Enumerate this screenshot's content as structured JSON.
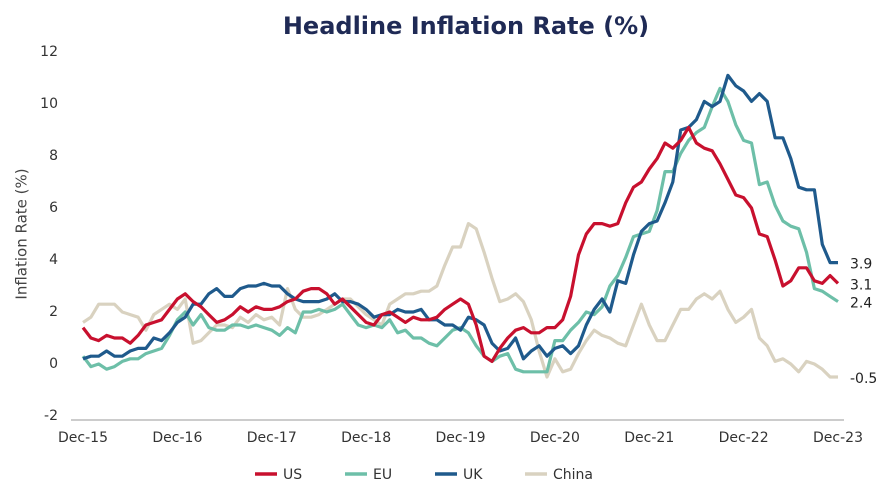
{
  "chart_data": {
    "type": "line",
    "title": "Headline Inflation Rate (%)",
    "y_label": "Inflation Rate (%)",
    "categories": [
      "Dec-15",
      null,
      null,
      null,
      null,
      null,
      null,
      null,
      null,
      null,
      null,
      null,
      "Dec-16",
      null,
      null,
      null,
      null,
      null,
      null,
      null,
      null,
      null,
      null,
      null,
      "Dec-17",
      null,
      null,
      null,
      null,
      null,
      null,
      null,
      null,
      null,
      null,
      null,
      "Dec-18",
      null,
      null,
      null,
      null,
      null,
      null,
      null,
      null,
      null,
      null,
      null,
      "Dec-19",
      null,
      null,
      null,
      null,
      null,
      null,
      null,
      null,
      null,
      null,
      null,
      "Dec-20",
      null,
      null,
      null,
      null,
      null,
      null,
      null,
      null,
      null,
      null,
      null,
      "Dec-21",
      null,
      null,
      null,
      null,
      null,
      null,
      null,
      null,
      null,
      null,
      null,
      "Dec-22",
      null,
      null,
      null,
      null,
      null,
      null,
      null,
      null,
      null,
      null,
      null,
      "Dec-23"
    ],
    "ylim": [
      -2,
      12
    ],
    "yticks": [
      -2,
      0,
      2,
      4,
      6,
      8,
      10,
      12
    ],
    "grid": false,
    "legend": "bottom",
    "series": [
      {
        "name": "US",
        "color": "#c8102e",
        "values": [
          1.4,
          1.0,
          0.9,
          1.1,
          1.0,
          1.0,
          0.8,
          1.1,
          1.5,
          1.6,
          1.7,
          2.1,
          2.5,
          2.7,
          2.4,
          2.2,
          1.9,
          1.6,
          1.7,
          1.9,
          2.2,
          2.0,
          2.2,
          2.1,
          2.1,
          2.2,
          2.4,
          2.5,
          2.8,
          2.9,
          2.9,
          2.7,
          2.3,
          2.5,
          2.2,
          1.9,
          1.6,
          1.5,
          1.9,
          2.0,
          1.8,
          1.6,
          1.8,
          1.7,
          1.7,
          1.8,
          2.1,
          2.3,
          2.5,
          2.3,
          1.5,
          0.3,
          0.1,
          0.6,
          1.0,
          1.3,
          1.4,
          1.2,
          1.2,
          1.4,
          1.4,
          1.7,
          2.6,
          4.2,
          5.0,
          5.4,
          5.4,
          5.3,
          5.4,
          6.2,
          6.8,
          7.0,
          7.5,
          7.9,
          8.5,
          8.3,
          8.6,
          9.1,
          8.5,
          8.3,
          8.2,
          7.7,
          7.1,
          6.5,
          6.4,
          6.0,
          5.0,
          4.9,
          4.0,
          3.0,
          3.2,
          3.7,
          3.7,
          3.2,
          3.1,
          3.4,
          3.1
        ]
      },
      {
        "name": "EU",
        "color": "#6dbfa8",
        "values": [
          0.3,
          -0.1,
          0.0,
          -0.2,
          -0.1,
          0.1,
          0.2,
          0.2,
          0.4,
          0.5,
          0.6,
          1.1,
          1.7,
          2.0,
          1.5,
          1.9,
          1.4,
          1.3,
          1.3,
          1.5,
          1.5,
          1.4,
          1.5,
          1.4,
          1.3,
          1.1,
          1.4,
          1.2,
          2.0,
          2.0,
          2.1,
          2.0,
          2.1,
          2.3,
          1.9,
          1.5,
          1.4,
          1.5,
          1.4,
          1.7,
          1.2,
          1.3,
          1.0,
          1.0,
          0.8,
          0.7,
          1.0,
          1.3,
          1.4,
          1.2,
          0.7,
          0.3,
          0.1,
          0.3,
          0.4,
          -0.2,
          -0.3,
          -0.3,
          -0.3,
          -0.3,
          0.9,
          0.9,
          1.3,
          1.6,
          2.0,
          1.9,
          2.2,
          3.0,
          3.4,
          4.1,
          4.9,
          5.0,
          5.1,
          5.9,
          7.4,
          7.4,
          8.1,
          8.6,
          8.9,
          9.1,
          9.9,
          10.6,
          10.1,
          9.2,
          8.6,
          8.5,
          6.9,
          7.0,
          6.1,
          5.5,
          5.3,
          5.2,
          4.3,
          2.9,
          2.8,
          2.6,
          2.4
        ]
      },
      {
        "name": "UK",
        "color": "#1f5a8c",
        "values": [
          0.2,
          0.3,
          0.3,
          0.5,
          0.3,
          0.3,
          0.5,
          0.6,
          0.6,
          1.0,
          0.9,
          1.2,
          1.6,
          1.8,
          2.3,
          2.3,
          2.7,
          2.9,
          2.6,
          2.6,
          2.9,
          3.0,
          3.0,
          3.1,
          3.0,
          3.0,
          2.7,
          2.5,
          2.4,
          2.4,
          2.4,
          2.5,
          2.7,
          2.4,
          2.4,
          2.3,
          2.1,
          1.8,
          1.9,
          1.9,
          2.1,
          2.0,
          2.0,
          2.1,
          1.7,
          1.7,
          1.5,
          1.5,
          1.3,
          1.8,
          1.7,
          1.5,
          0.8,
          0.5,
          0.6,
          1.0,
          0.2,
          0.5,
          0.7,
          0.3,
          0.6,
          0.7,
          0.4,
          0.7,
          1.5,
          2.1,
          2.5,
          2.0,
          3.2,
          3.1,
          4.2,
          5.1,
          5.4,
          5.5,
          6.2,
          7.0,
          9.0,
          9.1,
          9.4,
          10.1,
          9.9,
          10.1,
          11.1,
          10.7,
          10.5,
          10.1,
          10.4,
          10.1,
          8.7,
          8.7,
          7.9,
          6.8,
          6.7,
          6.7,
          4.6,
          3.9,
          3.9
        ]
      },
      {
        "name": "China",
        "color": "#d9d2c0",
        "values": [
          1.6,
          1.8,
          2.3,
          2.3,
          2.3,
          2.0,
          1.9,
          1.8,
          1.3,
          1.9,
          2.1,
          2.3,
          2.1,
          2.5,
          0.8,
          0.9,
          1.2,
          1.5,
          1.5,
          1.4,
          1.8,
          1.6,
          1.9,
          1.7,
          1.8,
          1.5,
          2.9,
          2.1,
          1.8,
          1.8,
          1.9,
          2.1,
          2.3,
          2.5,
          2.5,
          2.2,
          1.9,
          1.7,
          1.5,
          2.3,
          2.5,
          2.7,
          2.7,
          2.8,
          2.8,
          3.0,
          3.8,
          4.5,
          4.5,
          5.4,
          5.2,
          4.3,
          3.3,
          2.4,
          2.5,
          2.7,
          2.4,
          1.7,
          0.5,
          -0.5,
          0.2,
          -0.3,
          -0.2,
          0.4,
          0.9,
          1.3,
          1.1,
          1.0,
          0.8,
          0.7,
          1.5,
          2.3,
          1.5,
          0.9,
          0.9,
          1.5,
          2.1,
          2.1,
          2.5,
          2.7,
          2.5,
          2.8,
          2.1,
          1.6,
          1.8,
          2.1,
          1.0,
          0.7,
          0.1,
          0.2,
          0.0,
          -0.3,
          0.1,
          0.0,
          -0.2,
          -0.5,
          -0.5
        ]
      }
    ]
  }
}
